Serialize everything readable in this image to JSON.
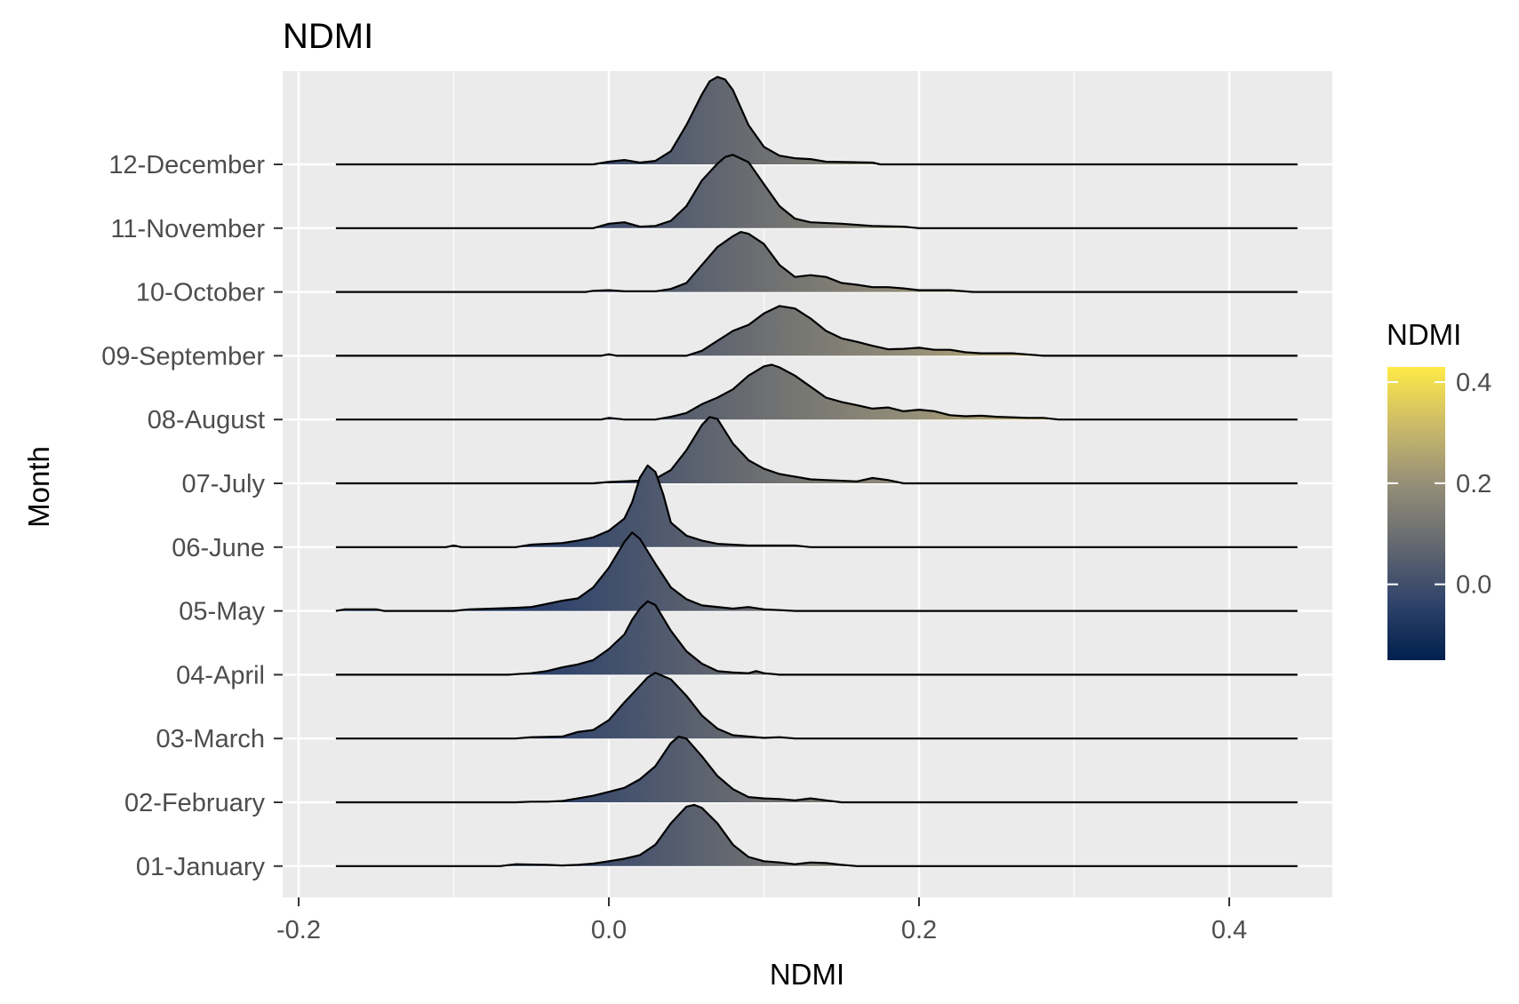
{
  "chart_data": {
    "type": "ridgeline",
    "title": "NDMI",
    "xlabel": "NDMI",
    "ylabel": "Month",
    "xlim": [
      -0.2,
      0.45
    ],
    "x_ticks": [
      -0.2,
      0.0,
      0.2,
      0.4
    ],
    "x_tick_labels": [
      "-0.2",
      "0.0",
      "0.2",
      "0.4"
    ],
    "grid": true,
    "legend": {
      "title": "NDMI",
      "position": "right",
      "range": [
        -0.15,
        0.43
      ],
      "ticks": [
        0.0,
        0.2,
        0.4
      ],
      "tick_labels": [
        "0.0",
        "0.2",
        "0.4"
      ],
      "colors": [
        "#00204d",
        "#31446b",
        "#666970",
        "#958f78",
        "#cbba69",
        "#ffea46"
      ]
    },
    "line_range": [
      -0.176,
      0.444
    ],
    "series": [
      {
        "name": "01-January",
        "peak_height": 0.96,
        "points": [
          [
            -0.07,
            0
          ],
          [
            -0.06,
            0.03
          ],
          [
            -0.04,
            0.02
          ],
          [
            -0.03,
            0.01
          ],
          [
            -0.02,
            0.02
          ],
          [
            -0.01,
            0.04
          ],
          [
            0.0,
            0.08
          ],
          [
            0.01,
            0.12
          ],
          [
            0.02,
            0.18
          ],
          [
            0.03,
            0.35
          ],
          [
            0.04,
            0.7
          ],
          [
            0.05,
            0.97
          ],
          [
            0.055,
            1.0
          ],
          [
            0.06,
            0.95
          ],
          [
            0.07,
            0.7
          ],
          [
            0.08,
            0.35
          ],
          [
            0.09,
            0.15
          ],
          [
            0.1,
            0.08
          ],
          [
            0.11,
            0.06
          ],
          [
            0.12,
            0.03
          ],
          [
            0.13,
            0.06
          ],
          [
            0.14,
            0.05
          ],
          [
            0.15,
            0.02
          ],
          [
            0.16,
            0
          ]
        ]
      },
      {
        "name": "02-February",
        "peak_height": 1.03,
        "points": [
          [
            -0.06,
            0
          ],
          [
            -0.05,
            0.01
          ],
          [
            -0.04,
            0.01
          ],
          [
            -0.03,
            0.02
          ],
          [
            -0.02,
            0.06
          ],
          [
            -0.01,
            0.1
          ],
          [
            0.0,
            0.16
          ],
          [
            0.01,
            0.22
          ],
          [
            0.02,
            0.35
          ],
          [
            0.03,
            0.55
          ],
          [
            0.04,
            0.9
          ],
          [
            0.045,
            1.0
          ],
          [
            0.05,
            0.97
          ],
          [
            0.06,
            0.7
          ],
          [
            0.07,
            0.4
          ],
          [
            0.08,
            0.2
          ],
          [
            0.09,
            0.08
          ],
          [
            0.1,
            0.06
          ],
          [
            0.11,
            0.05
          ],
          [
            0.12,
            0.03
          ],
          [
            0.13,
            0.06
          ],
          [
            0.14,
            0.03
          ],
          [
            0.15,
            0
          ]
        ]
      },
      {
        "name": "03-March",
        "peak_height": 1.03,
        "points": [
          [
            -0.06,
            0
          ],
          [
            -0.05,
            0.02
          ],
          [
            -0.03,
            0.03
          ],
          [
            -0.02,
            0.1
          ],
          [
            -0.01,
            0.13
          ],
          [
            0.0,
            0.28
          ],
          [
            0.01,
            0.55
          ],
          [
            0.02,
            0.8
          ],
          [
            0.025,
            0.93
          ],
          [
            0.03,
            1.0
          ],
          [
            0.04,
            0.9
          ],
          [
            0.05,
            0.65
          ],
          [
            0.06,
            0.35
          ],
          [
            0.07,
            0.15
          ],
          [
            0.08,
            0.05
          ],
          [
            0.09,
            0.03
          ],
          [
            0.1,
            0.01
          ],
          [
            0.11,
            0.02
          ],
          [
            0.12,
            0
          ]
        ]
      },
      {
        "name": "04-April",
        "peak_height": 1.15,
        "points": [
          [
            -0.065,
            0
          ],
          [
            -0.05,
            0.02
          ],
          [
            -0.04,
            0.05
          ],
          [
            -0.03,
            0.1
          ],
          [
            -0.02,
            0.14
          ],
          [
            -0.01,
            0.2
          ],
          [
            0.0,
            0.35
          ],
          [
            0.01,
            0.55
          ],
          [
            0.015,
            0.75
          ],
          [
            0.02,
            0.9
          ],
          [
            0.025,
            1.0
          ],
          [
            0.03,
            0.95
          ],
          [
            0.04,
            0.6
          ],
          [
            0.05,
            0.32
          ],
          [
            0.06,
            0.15
          ],
          [
            0.07,
            0.05
          ],
          [
            0.08,
            0.03
          ],
          [
            0.09,
            0.02
          ],
          [
            0.095,
            0.05
          ],
          [
            0.1,
            0.02
          ],
          [
            0.11,
            0
          ]
        ]
      },
      {
        "name": "05-May",
        "peak_height": 1.23,
        "points": [
          [
            -0.176,
            0
          ],
          [
            -0.17,
            0.02
          ],
          [
            -0.15,
            0.02
          ],
          [
            -0.145,
            0
          ],
          [
            -0.1,
            0
          ],
          [
            -0.09,
            0.02
          ],
          [
            -0.06,
            0.04
          ],
          [
            -0.05,
            0.05
          ],
          [
            -0.04,
            0.09
          ],
          [
            -0.03,
            0.13
          ],
          [
            -0.02,
            0.16
          ],
          [
            -0.01,
            0.3
          ],
          [
            0.0,
            0.55
          ],
          [
            0.01,
            0.88
          ],
          [
            0.015,
            1.0
          ],
          [
            0.02,
            0.92
          ],
          [
            0.03,
            0.6
          ],
          [
            0.04,
            0.3
          ],
          [
            0.05,
            0.15
          ],
          [
            0.06,
            0.07
          ],
          [
            0.08,
            0.03
          ],
          [
            0.09,
            0.05
          ],
          [
            0.1,
            0.02
          ],
          [
            0.12,
            0
          ]
        ]
      },
      {
        "name": "06-June",
        "peak_height": 1.28,
        "points": [
          [
            -0.105,
            0
          ],
          [
            -0.1,
            0.02
          ],
          [
            -0.095,
            0
          ],
          [
            -0.06,
            0
          ],
          [
            -0.05,
            0.03
          ],
          [
            -0.03,
            0.05
          ],
          [
            -0.02,
            0.08
          ],
          [
            -0.01,
            0.12
          ],
          [
            0.0,
            0.2
          ],
          [
            0.01,
            0.35
          ],
          [
            0.015,
            0.55
          ],
          [
            0.02,
            0.85
          ],
          [
            0.025,
            1.0
          ],
          [
            0.03,
            0.92
          ],
          [
            0.035,
            0.65
          ],
          [
            0.04,
            0.3
          ],
          [
            0.05,
            0.14
          ],
          [
            0.06,
            0.08
          ],
          [
            0.07,
            0.04
          ],
          [
            0.09,
            0.02
          ],
          [
            0.12,
            0.02
          ],
          [
            0.13,
            0
          ]
        ]
      },
      {
        "name": "07-July",
        "peak_height": 1.04,
        "points": [
          [
            -0.01,
            0
          ],
          [
            0.0,
            0.02
          ],
          [
            0.02,
            0.04
          ],
          [
            0.03,
            0.07
          ],
          [
            0.04,
            0.2
          ],
          [
            0.05,
            0.5
          ],
          [
            0.06,
            0.88
          ],
          [
            0.065,
            1.0
          ],
          [
            0.07,
            0.97
          ],
          [
            0.08,
            0.6
          ],
          [
            0.09,
            0.35
          ],
          [
            0.1,
            0.22
          ],
          [
            0.11,
            0.14
          ],
          [
            0.12,
            0.1
          ],
          [
            0.13,
            0.06
          ],
          [
            0.14,
            0.05
          ],
          [
            0.16,
            0.03
          ],
          [
            0.17,
            0.08
          ],
          [
            0.18,
            0.05
          ],
          [
            0.19,
            0
          ]
        ]
      },
      {
        "name": "08-August",
        "peak_height": 0.86,
        "points": [
          [
            -0.005,
            0
          ],
          [
            0.0,
            0.03
          ],
          [
            0.01,
            0
          ],
          [
            0.03,
            0
          ],
          [
            0.04,
            0.05
          ],
          [
            0.05,
            0.12
          ],
          [
            0.06,
            0.28
          ],
          [
            0.07,
            0.4
          ],
          [
            0.08,
            0.55
          ],
          [
            0.09,
            0.8
          ],
          [
            0.1,
            0.97
          ],
          [
            0.105,
            1.0
          ],
          [
            0.11,
            0.95
          ],
          [
            0.12,
            0.8
          ],
          [
            0.13,
            0.6
          ],
          [
            0.14,
            0.4
          ],
          [
            0.15,
            0.32
          ],
          [
            0.16,
            0.26
          ],
          [
            0.17,
            0.2
          ],
          [
            0.18,
            0.22
          ],
          [
            0.19,
            0.15
          ],
          [
            0.2,
            0.18
          ],
          [
            0.21,
            0.15
          ],
          [
            0.22,
            0.08
          ],
          [
            0.23,
            0.06
          ],
          [
            0.24,
            0.07
          ],
          [
            0.25,
            0.05
          ],
          [
            0.26,
            0.04
          ],
          [
            0.27,
            0.03
          ],
          [
            0.28,
            0.03
          ],
          [
            0.29,
            0
          ]
        ]
      },
      {
        "name": "09-September",
        "peak_height": 0.78,
        "points": [
          [
            -0.005,
            0
          ],
          [
            0.0,
            0.03
          ],
          [
            0.005,
            0
          ],
          [
            0.05,
            0
          ],
          [
            0.06,
            0.1
          ],
          [
            0.07,
            0.3
          ],
          [
            0.08,
            0.5
          ],
          [
            0.09,
            0.62
          ],
          [
            0.1,
            0.85
          ],
          [
            0.11,
            1.0
          ],
          [
            0.12,
            0.95
          ],
          [
            0.13,
            0.75
          ],
          [
            0.14,
            0.5
          ],
          [
            0.15,
            0.35
          ],
          [
            0.16,
            0.28
          ],
          [
            0.17,
            0.2
          ],
          [
            0.18,
            0.13
          ],
          [
            0.19,
            0.14
          ],
          [
            0.2,
            0.16
          ],
          [
            0.21,
            0.12
          ],
          [
            0.22,
            0.12
          ],
          [
            0.23,
            0.07
          ],
          [
            0.24,
            0.05
          ],
          [
            0.26,
            0.05
          ],
          [
            0.28,
            0
          ]
        ]
      },
      {
        "name": "10-October",
        "peak_height": 0.94,
        "points": [
          [
            -0.015,
            0
          ],
          [
            -0.01,
            0.02
          ],
          [
            0.0,
            0.03
          ],
          [
            0.01,
            0.01
          ],
          [
            0.03,
            0.01
          ],
          [
            0.04,
            0.05
          ],
          [
            0.05,
            0.15
          ],
          [
            0.06,
            0.45
          ],
          [
            0.07,
            0.75
          ],
          [
            0.08,
            0.93
          ],
          [
            0.085,
            1.0
          ],
          [
            0.09,
            0.97
          ],
          [
            0.1,
            0.8
          ],
          [
            0.11,
            0.45
          ],
          [
            0.12,
            0.25
          ],
          [
            0.13,
            0.28
          ],
          [
            0.14,
            0.25
          ],
          [
            0.15,
            0.15
          ],
          [
            0.16,
            0.12
          ],
          [
            0.17,
            0.08
          ],
          [
            0.18,
            0.08
          ],
          [
            0.19,
            0.06
          ],
          [
            0.2,
            0.03
          ],
          [
            0.22,
            0.03
          ],
          [
            0.235,
            0
          ]
        ]
      },
      {
        "name": "11-November",
        "peak_height": 1.15,
        "points": [
          [
            -0.01,
            0
          ],
          [
            0.0,
            0.06
          ],
          [
            0.01,
            0.08
          ],
          [
            0.02,
            0.02
          ],
          [
            0.03,
            0.03
          ],
          [
            0.04,
            0.1
          ],
          [
            0.05,
            0.3
          ],
          [
            0.06,
            0.65
          ],
          [
            0.07,
            0.88
          ],
          [
            0.075,
            0.97
          ],
          [
            0.08,
            1.0
          ],
          [
            0.09,
            0.9
          ],
          [
            0.1,
            0.6
          ],
          [
            0.11,
            0.3
          ],
          [
            0.12,
            0.13
          ],
          [
            0.13,
            0.08
          ],
          [
            0.15,
            0.06
          ],
          [
            0.17,
            0.03
          ],
          [
            0.19,
            0.02
          ],
          [
            0.2,
            0
          ]
        ]
      },
      {
        "name": "12-December",
        "peak_height": 1.37,
        "points": [
          [
            -0.01,
            0
          ],
          [
            0.0,
            0.03
          ],
          [
            0.01,
            0.05
          ],
          [
            0.02,
            0.02
          ],
          [
            0.03,
            0.04
          ],
          [
            0.04,
            0.15
          ],
          [
            0.05,
            0.45
          ],
          [
            0.06,
            0.8
          ],
          [
            0.065,
            0.95
          ],
          [
            0.07,
            1.0
          ],
          [
            0.075,
            0.97
          ],
          [
            0.08,
            0.85
          ],
          [
            0.09,
            0.45
          ],
          [
            0.1,
            0.2
          ],
          [
            0.11,
            0.1
          ],
          [
            0.12,
            0.07
          ],
          [
            0.13,
            0.06
          ],
          [
            0.14,
            0.03
          ],
          [
            0.17,
            0.02
          ],
          [
            0.175,
            0
          ]
        ]
      }
    ]
  }
}
